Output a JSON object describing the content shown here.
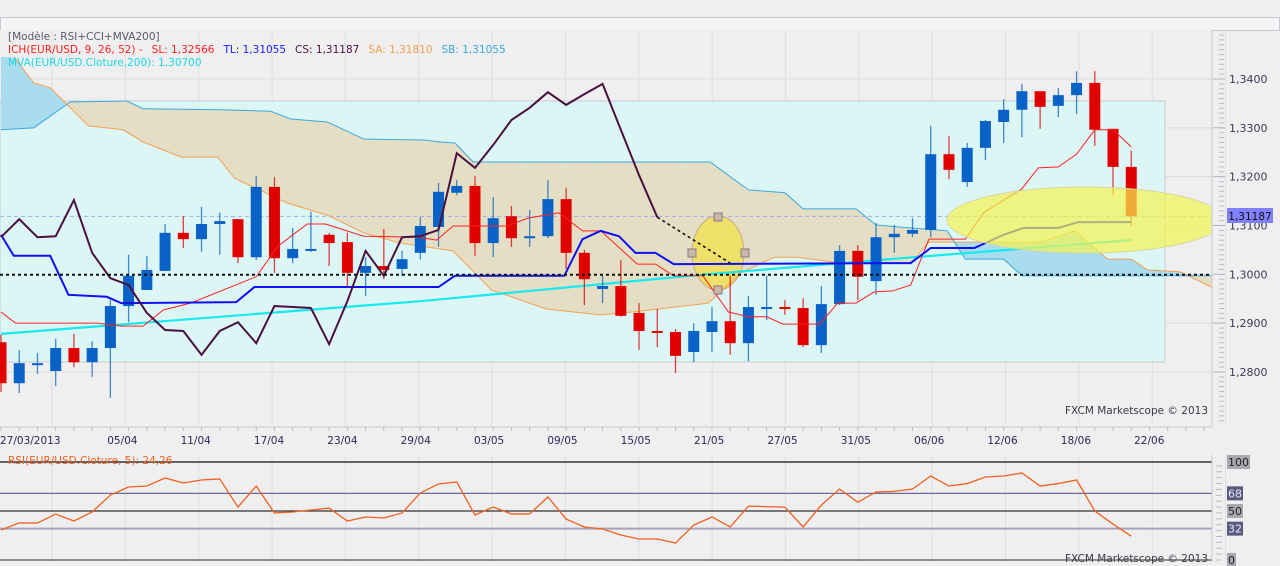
{
  "legend": {
    "model": "[Modèle : RSI+CCI+MVA200]",
    "ich": "ICH(EUR/USD, 9, 26, 52) -",
    "sl": "SL: 1,32566",
    "tl": "TL: 1,31055",
    "cs": "CS: 1,31187",
    "sa": "SA: 1,31810",
    "sb": "SB: 1,31055",
    "mva": "MVA(EUR/USD.Cloture,200): 1,30700",
    "rsi": "RSI(EUR/USD.Cloture, 5): 24,26"
  },
  "watermark": "FXCM Marketscope © 2013",
  "price_tag": "1,31187",
  "colors": {
    "up": "#0a62c6",
    "down": "#e00000",
    "tenkan": "#ff2020",
    "kijun": "#1010f0",
    "chikou": "#4a1040",
    "mva": "#18e8f0",
    "senkou_a": "#f5a050",
    "senkou_b": "#3aa8e0",
    "cloud_bull": "#a9dcef",
    "cloud_bear": "#e4dfc4",
    "rsi": "#f06020",
    "price_tag_bg": "#8080ff"
  },
  "chart_data": [
    {
      "type": "candlestick",
      "symbol": "EUR/USD",
      "ylim": [
        1.2691,
        1.35
      ],
      "y_ticks": [
        "1,3400",
        "1,3300",
        "1,3200",
        "1,3100",
        "1,3000",
        "1,2900",
        "1,2800"
      ],
      "y_tick_values": [
        1.34,
        1.33,
        1.32,
        1.31,
        1.3,
        1.29,
        1.28
      ],
      "x_tick_labels": [
        "27/03/2013",
        "05/04",
        "11/04",
        "17/04",
        "23/04",
        "29/04",
        "03/05",
        "09/05",
        "15/05",
        "21/05",
        "27/05",
        "31/05",
        "06/06",
        "12/06",
        "18/06",
        "22/06"
      ],
      "horizontal_levels": {
        "support": 1.2999,
        "last_close": 1.31187
      },
      "ohlc": [
        [
          1.2861,
          1.2876,
          1.2759,
          1.2777
        ],
        [
          1.2777,
          1.2845,
          1.2757,
          1.2818
        ],
        [
          1.2818,
          1.2839,
          1.2796,
          1.2818
        ],
        [
          1.2802,
          1.2868,
          1.2771,
          1.2849
        ],
        [
          1.2849,
          1.2878,
          1.281,
          1.282
        ],
        [
          1.282,
          1.2863,
          1.279,
          1.2849
        ],
        [
          1.2849,
          1.2947,
          1.2747,
          1.2935
        ],
        [
          1.2935,
          1.304,
          1.2902,
          1.2997
        ],
        [
          1.2968,
          1.3038,
          1.2968,
          1.3009
        ],
        [
          1.3007,
          1.3103,
          1.3007,
          1.3085
        ],
        [
          1.3085,
          1.3119,
          1.3054,
          1.3072
        ],
        [
          1.3072,
          1.3138,
          1.3046,
          1.3103
        ],
        [
          1.3103,
          1.3126,
          1.304,
          1.3109
        ],
        [
          1.3113,
          1.3113,
          1.3023,
          1.3035
        ],
        [
          1.3035,
          1.3201,
          1.3029,
          1.3179
        ],
        [
          1.3179,
          1.3199,
          1.3003,
          1.3033
        ],
        [
          1.3033,
          1.3095,
          1.3023,
          1.3052
        ],
        [
          1.305,
          1.3128,
          1.3046,
          1.3052
        ],
        [
          1.3081,
          1.3085,
          1.3017,
          1.3064
        ],
        [
          1.3066,
          1.3085,
          1.2976,
          1.3003
        ],
        [
          1.3003,
          1.3035,
          1.2956,
          1.3017
        ],
        [
          1.3017,
          1.3093,
          1.299,
          1.3009
        ],
        [
          1.3011,
          1.3048,
          1.2997,
          1.3031
        ],
        [
          1.3044,
          1.3117,
          1.3031,
          1.3099
        ],
        [
          1.3097,
          1.3187,
          1.3056,
          1.3169
        ],
        [
          1.3167,
          1.3193,
          1.3162,
          1.3181
        ],
        [
          1.3181,
          1.3201,
          1.3038,
          1.3064
        ],
        [
          1.3064,
          1.3158,
          1.3035,
          1.3115
        ],
        [
          1.3119,
          1.314,
          1.3056,
          1.3074
        ],
        [
          1.3076,
          1.3132,
          1.3056,
          1.3078
        ],
        [
          1.3078,
          1.3193,
          1.3074,
          1.3154
        ],
        [
          1.3154,
          1.3177,
          1.3011,
          1.3044
        ],
        [
          1.3044,
          1.305,
          1.2937,
          1.299
        ],
        [
          1.297,
          1.2997,
          1.2941,
          1.2976
        ],
        [
          1.2976,
          1.3029,
          1.2913,
          1.2915
        ],
        [
          1.2921,
          1.2941,
          1.2845,
          1.2884
        ],
        [
          1.2884,
          1.2929,
          1.2851,
          1.2882
        ],
        [
          1.2882,
          1.2888,
          1.2798,
          1.2833
        ],
        [
          1.2841,
          1.29,
          1.282,
          1.2884
        ],
        [
          1.2882,
          1.2933,
          1.2841,
          1.2904
        ],
        [
          1.2904,
          1.2997,
          1.2835,
          1.2859
        ],
        [
          1.2859,
          1.2956,
          1.2822,
          1.2933
        ],
        [
          1.2931,
          1.2997,
          1.2906,
          1.2933
        ],
        [
          1.2933,
          1.2947,
          1.2917,
          1.2931
        ],
        [
          1.2931,
          1.2951,
          1.2851,
          1.2855
        ],
        [
          1.2855,
          1.2976,
          1.2839,
          1.2939
        ],
        [
          1.2939,
          1.306,
          1.2937,
          1.3048
        ],
        [
          1.3048,
          1.306,
          1.2947,
          1.2995
        ],
        [
          1.2986,
          1.3105,
          1.2958,
          1.3076
        ],
        [
          1.3076,
          1.3101,
          1.3044,
          1.3083
        ],
        [
          1.3083,
          1.3115,
          1.3076,
          1.3091
        ],
        [
          1.3091,
          1.3304,
          1.3076,
          1.3246
        ],
        [
          1.3246,
          1.3283,
          1.3195,
          1.3214
        ],
        [
          1.3189,
          1.3269,
          1.3179,
          1.3259
        ],
        [
          1.3259,
          1.3316,
          1.3234,
          1.3314
        ],
        [
          1.3312,
          1.3359,
          1.3269,
          1.3337
        ],
        [
          1.3337,
          1.339,
          1.3281,
          1.3375
        ],
        [
          1.3375,
          1.3375,
          1.3298,
          1.3343
        ],
        [
          1.3345,
          1.3382,
          1.3322,
          1.3367
        ],
        [
          1.3367,
          1.3416,
          1.3328,
          1.3392
        ],
        [
          1.3392,
          1.3416,
          1.3263,
          1.3296
        ],
        [
          1.3298,
          1.3298,
          1.3162,
          1.322
        ],
        [
          1.322,
          1.3253,
          1.3099,
          1.3119
        ]
      ],
      "series": [
        {
          "name": "SL",
          "color_key": "tenkan",
          "points": [
            [
              0,
              1.2923
            ],
            [
              0.8,
              1.29
            ],
            [
              5.3,
              1.29
            ],
            [
              6.6,
              1.2894
            ],
            [
              7.8,
              1.2894
            ],
            [
              8.9,
              1.2927
            ],
            [
              10.4,
              1.2941
            ],
            [
              14,
              1.2995
            ],
            [
              15.2,
              1.3058
            ],
            [
              16.8,
              1.3103
            ],
            [
              17.8,
              1.3103
            ],
            [
              18.8,
              1.3091
            ],
            [
              19.9,
              1.3078
            ],
            [
              22.9,
              1.3076
            ],
            [
              23.9,
              1.307
            ],
            [
              24.8,
              1.3099
            ],
            [
              27.8,
              1.3099
            ],
            [
              28.9,
              1.3115
            ],
            [
              30.6,
              1.3126
            ],
            [
              31.9,
              1.3089
            ],
            [
              32.9,
              1.3089
            ],
            [
              34.9,
              1.3021
            ],
            [
              35.9,
              1.3021
            ],
            [
              36.9,
              1.2997
            ],
            [
              38.5,
              1.2997
            ],
            [
              39.9,
              1.2923
            ],
            [
              41,
              1.2913
            ],
            [
              42,
              1.2913
            ],
            [
              42.9,
              1.2898
            ],
            [
              44.9,
              1.2898
            ],
            [
              45.9,
              1.2941
            ],
            [
              46.9,
              1.2941
            ],
            [
              47.9,
              1.2964
            ],
            [
              48.9,
              1.2966
            ],
            [
              49.9,
              1.2978
            ],
            [
              50.9,
              1.3072
            ],
            [
              52.9,
              1.3072
            ],
            [
              53.9,
              1.3126
            ],
            [
              55,
              1.3152
            ],
            [
              56,
              1.3175
            ],
            [
              56.9,
              1.3218
            ],
            [
              58,
              1.322
            ],
            [
              59,
              1.3246
            ],
            [
              60,
              1.3296
            ],
            [
              61,
              1.3296
            ],
            [
              62,
              1.3261
            ]
          ]
        },
        {
          "name": "TL",
          "color_key": "kijun",
          "points": [
            [
              0,
              1.3081
            ],
            [
              0.7,
              1.3038
            ],
            [
              2.7,
              1.3038
            ],
            [
              3.7,
              1.2958
            ],
            [
              5.8,
              1.2954
            ],
            [
              6.6,
              1.2941
            ],
            [
              12.9,
              1.2943
            ],
            [
              13.9,
              1.2974
            ],
            [
              24,
              1.2974
            ],
            [
              24.9,
              1.2997
            ],
            [
              30.9,
              1.2997
            ],
            [
              31.9,
              1.3072
            ],
            [
              32.9,
              1.3089
            ],
            [
              33.9,
              1.3078
            ],
            [
              34.8,
              1.3044
            ],
            [
              35.9,
              1.3044
            ],
            [
              36.9,
              1.3021
            ],
            [
              49.9,
              1.3023
            ],
            [
              51,
              1.3054
            ],
            [
              53.4,
              1.3054
            ],
            [
              55,
              1.3081
            ],
            [
              56.1,
              1.3095
            ],
            [
              58,
              1.3095
            ],
            [
              59.1,
              1.3107
            ],
            [
              62,
              1.3107
            ]
          ]
        },
        {
          "name": "CS",
          "color_key": "chikou",
          "values": [
            1.3076,
            1.3113,
            1.3076,
            1.3078,
            1.3152,
            1.3044,
            1.2992,
            1.2978,
            1.2921,
            1.2886,
            1.2884,
            1.2835,
            1.2884,
            1.2902,
            1.2859,
            1.2935,
            1.2933,
            1.2931,
            1.2857,
            1.2945,
            1.3048,
            1.2997,
            1.3076,
            1.3078,
            1.3091,
            1.3248,
            1.3218,
            1.3265,
            1.3316,
            1.3341,
            1.3373,
            1.3347,
            1.3369,
            1.339,
            1.3296,
            1.3203,
            1.3117
          ],
          "projection": [
            [
              36,
              1.3117
            ],
            [
              40,
              1.3023
            ]
          ]
        },
        {
          "name": "SA",
          "color_key": "senkou_a",
          "points": [
            [
              0.7,
              1.3445
            ],
            [
              1.8,
              1.3392
            ],
            [
              2.7,
              1.3382
            ],
            [
              4.8,
              1.3304
            ],
            [
              6.7,
              1.3296
            ],
            [
              7.8,
              1.3271
            ],
            [
              9.9,
              1.324
            ],
            [
              11.9,
              1.324
            ],
            [
              12.8,
              1.3197
            ],
            [
              15.7,
              1.3146
            ],
            [
              17.9,
              1.3121
            ],
            [
              19.9,
              1.3085
            ],
            [
              21.9,
              1.3064
            ],
            [
              24.8,
              1.3048
            ],
            [
              26.9,
              1.2968
            ],
            [
              29.9,
              1.2929
            ],
            [
              32.9,
              1.2917
            ],
            [
              34.7,
              1.2923
            ],
            [
              38.8,
              1.2941
            ],
            [
              40.6,
              1.3003
            ],
            [
              42.4,
              1.3035
            ],
            [
              43.7,
              1.3035
            ],
            [
              46.1,
              1.3023
            ],
            [
              49.9,
              1.3023
            ],
            [
              50.9,
              1.3066
            ],
            [
              57,
              1.3066
            ],
            [
              58.9,
              1.3089
            ],
            [
              60.7,
              1.3031
            ],
            [
              62,
              1.3031
            ],
            [
              62.9,
              1.3009
            ],
            [
              64.7,
              1.3005
            ],
            [
              66.5,
              1.2972
            ]
          ]
        },
        {
          "name": "SB",
          "color_key": "senkou_b",
          "points": [
            [
              0,
              1.3296
            ],
            [
              1.8,
              1.33
            ],
            [
              3.8,
              1.3353
            ],
            [
              6.9,
              1.3355
            ],
            [
              7.8,
              1.3339
            ],
            [
              12.1,
              1.3337
            ],
            [
              14.8,
              1.3334
            ],
            [
              15.9,
              1.3318
            ],
            [
              17.9,
              1.3312
            ],
            [
              19.9,
              1.3277
            ],
            [
              23.2,
              1.3275
            ],
            [
              24.1,
              1.3271
            ],
            [
              24.9,
              1.3269
            ],
            [
              25.9,
              1.323
            ],
            [
              38.9,
              1.323
            ],
            [
              41,
              1.3173
            ],
            [
              43,
              1.3167
            ],
            [
              44,
              1.3134
            ],
            [
              46.9,
              1.3134
            ],
            [
              48,
              1.3101
            ],
            [
              51.9,
              1.3089
            ],
            [
              52.9,
              1.3031
            ],
            [
              55,
              1.3031
            ],
            [
              56,
              1.2997
            ],
            [
              66.5,
              1.2997
            ]
          ]
        },
        {
          "name": "MVA",
          "color_key": "mva",
          "points": [
            [
              0,
              1.2878
            ],
            [
              23,
              1.2945
            ],
            [
              38.4,
              1.2999
            ],
            [
              49.4,
              1.3033
            ],
            [
              62,
              1.307
            ]
          ]
        }
      ]
    },
    {
      "type": "line",
      "title": "RSI(EUR/USD.Cloture, 5): 24,26",
      "ylim": [
        0,
        100
      ],
      "levels": [
        100,
        68,
        50,
        32,
        0
      ],
      "level_labels": [
        "100",
        "68",
        "50",
        "32",
        "0"
      ],
      "values": [
        30.6,
        37.8,
        37.8,
        46.9,
        39.8,
        49,
        66.3,
        74.5,
        75.5,
        83.7,
        78.6,
        81.6,
        82.7,
        54,
        75.5,
        48,
        49,
        51,
        53,
        39.8,
        43.9,
        42.9,
        48,
        68.4,
        77.6,
        79.6,
        45.9,
        54,
        47,
        47,
        64.3,
        41.8,
        33.7,
        31.6,
        25.5,
        21.4,
        21.4,
        17.3,
        35.7,
        43.9,
        33.7,
        55,
        54.5,
        54,
        33.7,
        56,
        72.4,
        59,
        69.4,
        70,
        72.4,
        85.7,
        75.5,
        78,
        84.7,
        85.7,
        88.8,
        75.5,
        78,
        81.6,
        50,
        36.7,
        24.26
      ]
    }
  ]
}
